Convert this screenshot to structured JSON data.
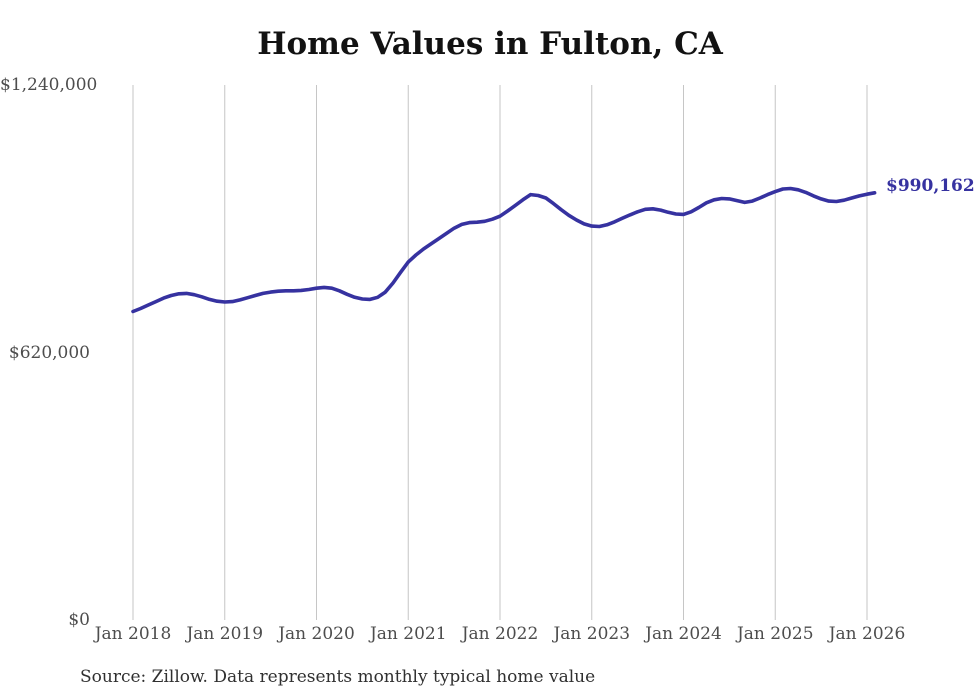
{
  "chart_data": {
    "type": "line",
    "title": "Home Values in Fulton, CA",
    "source_note": "Source: Zillow. Data represents monthly typical home value",
    "end_label": "$990,162",
    "current_value": 990162,
    "xlabel": "",
    "ylabel": "",
    "ylim": [
      0,
      1240000
    ],
    "grid": true,
    "grid_color": "#c6c6c6",
    "line_color": "#3632A0",
    "legend": false,
    "y_ticks": [
      {
        "value": 0,
        "label": "$0"
      },
      {
        "value": 620000,
        "label": "$620,000"
      },
      {
        "value": 1240000,
        "label": "$1,240,000"
      }
    ],
    "x_ticks": [
      "Jan 2018",
      "Jan 2019",
      "Jan 2020",
      "Jan 2021",
      "Jan 2022",
      "Jan 2023",
      "Jan 2024",
      "Jan 2025",
      "Jan 2026"
    ],
    "series": [
      {
        "name": "Typical home value",
        "start": "Jan 2018",
        "end": "Feb 2026",
        "frequency": "monthly",
        "values": [
          715000,
          722000,
          730000,
          738000,
          746000,
          752000,
          756000,
          757000,
          754000,
          749000,
          743000,
          739000,
          737000,
          738000,
          742000,
          747000,
          752000,
          757000,
          760000,
          762000,
          763000,
          763000,
          764000,
          766000,
          769000,
          771000,
          769000,
          763000,
          755000,
          748000,
          744000,
          743000,
          748000,
          760000,
          781000,
          806000,
          830000,
          846000,
          860000,
          872000,
          884000,
          896000,
          908000,
          917000,
          921000,
          922000,
          924000,
          929000,
          936000,
          948000,
          961000,
          974000,
          986000,
          984000,
          978000,
          965000,
          951000,
          938000,
          927000,
          918000,
          913000,
          912000,
          916000,
          923000,
          931000,
          939000,
          946000,
          952000,
          953000,
          950000,
          945000,
          941000,
          940000,
          946000,
          956000,
          967000,
          974000,
          977000,
          976000,
          972000,
          968000,
          971000,
          978000,
          986000,
          993000,
          999000,
          1000000,
          997000,
          991000,
          983000,
          976000,
          971000,
          970000,
          973000,
          978000,
          983000,
          987000,
          990162
        ]
      }
    ]
  }
}
